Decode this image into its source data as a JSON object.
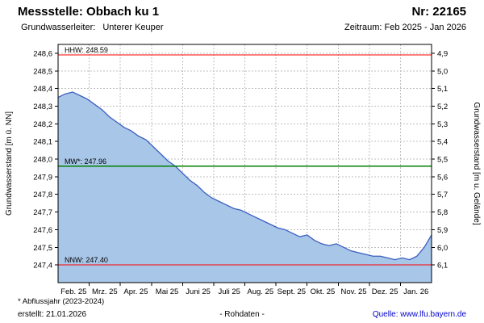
{
  "header": {
    "title": "Messstelle: Obbach ku 1",
    "number": "Nr: 22165",
    "aquifer_label": "Grundwasserleiter:",
    "aquifer_value": "Unterer Keuper",
    "period": "Zeitraum: Feb 2025 - Jan 2026"
  },
  "footer": {
    "note": "* Abflussjahr (2023-2024)",
    "created": "erstellt: 21.01.2026",
    "center": "- Rohdaten -",
    "source": "Quelle: www.lfu.bayern.de"
  },
  "colors": {
    "series_line": "#3c5fc0",
    "series_fill": "#a8c6e8",
    "extreme_line": "#ff0000",
    "mean_line": "#008000",
    "grid": "#bfbfbf",
    "frame": "#000000",
    "link": "#0000c8"
  },
  "chart_data": {
    "type": "area",
    "title": "Messstelle: Obbach ku 1",
    "subtitle": "Grundwasserleiter: Unterer Keuper, Zeitraum: Feb 2025 - Jan 2026",
    "x_tick_labels": [
      "Feb. 25",
      "Mrz. 25",
      "Apr. 25",
      "Mai 25",
      "Juni 25",
      "Juli 25",
      "Aug. 25",
      "Sept. 25",
      "Okt. 25",
      "Nov. 25",
      "Dez. 25",
      "Jan. 26"
    ],
    "ylabel_left": "Grundwasserstand [m ü. NN]",
    "ylabel_right": "Grundwasserstand [m u. Gelände]",
    "ylim_left": [
      247.3,
      248.65
    ],
    "ytick_top": 248.6,
    "ytick_step": 0.1,
    "yticks_left_labels": [
      "248,6",
      "248,5",
      "248,4",
      "248,3",
      "248,2",
      "248,1",
      "248,0",
      "247,9",
      "247,8",
      "247,7",
      "247,6",
      "247,5",
      "247,4"
    ],
    "yticks_right_labels": [
      "4,9",
      "5,0",
      "5,1",
      "5,2",
      "5,3",
      "5,4",
      "5,5",
      "5,6",
      "5,7",
      "5,8",
      "5,9",
      "6,0",
      "6,1"
    ],
    "reference_lines": [
      {
        "name": "HHW",
        "label": "HHW: 248.59",
        "value": 248.59,
        "color": "#ff0000"
      },
      {
        "name": "MW",
        "label": "MW*: 247.96",
        "value": 247.96,
        "color": "#008000"
      },
      {
        "name": "NNW",
        "label": "NNW: 247.40",
        "value": 247.4,
        "color": "#ff0000"
      }
    ],
    "series": [
      {
        "name": "Grundwasserstand Rohdaten",
        "values": [
          248.35,
          248.37,
          248.38,
          248.36,
          248.34,
          248.31,
          248.28,
          248.24,
          248.21,
          248.18,
          248.16,
          248.13,
          248.11,
          248.07,
          248.03,
          247.99,
          247.96,
          247.92,
          247.88,
          247.85,
          247.81,
          247.78,
          247.76,
          247.74,
          247.72,
          247.71,
          247.69,
          247.67,
          247.65,
          247.63,
          247.61,
          247.6,
          247.58,
          247.56,
          247.57,
          247.54,
          247.52,
          247.51,
          247.52,
          247.5,
          247.48,
          247.47,
          247.46,
          247.45,
          247.45,
          247.44,
          247.43,
          247.44,
          247.43,
          247.45,
          247.5,
          247.57
        ]
      }
    ]
  }
}
